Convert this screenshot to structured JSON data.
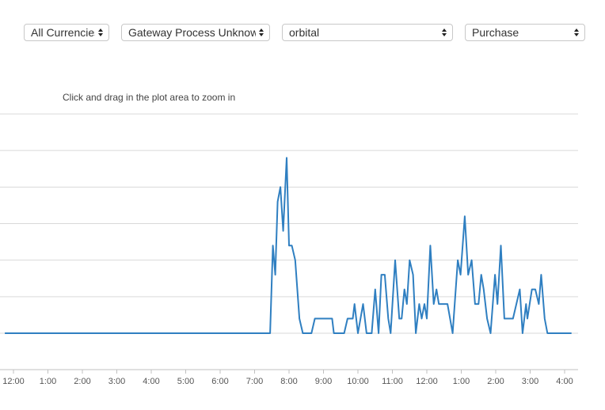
{
  "filters": {
    "currency": "All Currencies",
    "gateway": "Gateway Process Unknown",
    "merchant": "orbital",
    "transaction_type": "Purchase"
  },
  "zoom_hint": "Click and drag in the plot area to zoom in",
  "colors": {
    "series": "#2f7fc1",
    "grid": "#d9d9d9",
    "axis": "#c0c0c0"
  },
  "chart_data": {
    "type": "line",
    "x_tick_labels": [
      "12:00",
      "1:00",
      "2:00",
      "3:00",
      "4:00",
      "5:00",
      "6:00",
      "7:00",
      "8:00",
      "9:00",
      "10:00",
      "11:00",
      "12:00",
      "1:00",
      "2:00",
      "3:00",
      "4:00"
    ],
    "xlim_hours": [
      -0.25,
      16.3
    ],
    "ylim": [
      0,
      7
    ],
    "gridlines": 6,
    "grid": true,
    "series": [
      {
        "values": [
          [
            -0.25,
            0
          ],
          [
            7.45,
            0
          ],
          [
            7.53,
            2.4
          ],
          [
            7.6,
            1.6
          ],
          [
            7.67,
            3.6
          ],
          [
            7.75,
            4.0
          ],
          [
            7.83,
            2.8
          ],
          [
            7.93,
            4.8
          ],
          [
            8.0,
            2.4
          ],
          [
            8.08,
            2.4
          ],
          [
            8.18,
            2.0
          ],
          [
            8.3,
            0.4
          ],
          [
            8.4,
            0
          ],
          [
            8.65,
            0
          ],
          [
            8.75,
            0.4
          ],
          [
            9.25,
            0.4
          ],
          [
            9.3,
            0
          ],
          [
            9.6,
            0
          ],
          [
            9.7,
            0.4
          ],
          [
            9.85,
            0.4
          ],
          [
            9.9,
            0.8
          ],
          [
            10.0,
            0
          ],
          [
            10.15,
            0.8
          ],
          [
            10.25,
            0
          ],
          [
            10.4,
            0
          ],
          [
            10.5,
            1.2
          ],
          [
            10.6,
            0
          ],
          [
            10.68,
            1.6
          ],
          [
            10.78,
            1.6
          ],
          [
            10.88,
            0.4
          ],
          [
            10.95,
            0
          ],
          [
            11.08,
            2.0
          ],
          [
            11.2,
            0.4
          ],
          [
            11.27,
            0.4
          ],
          [
            11.35,
            1.2
          ],
          [
            11.42,
            0.8
          ],
          [
            11.5,
            2.0
          ],
          [
            11.6,
            1.6
          ],
          [
            11.68,
            0
          ],
          [
            11.78,
            0.8
          ],
          [
            11.85,
            0.4
          ],
          [
            11.93,
            0.8
          ],
          [
            12.0,
            0.4
          ],
          [
            12.1,
            2.4
          ],
          [
            12.2,
            0.8
          ],
          [
            12.28,
            1.2
          ],
          [
            12.35,
            0.8
          ],
          [
            12.6,
            0.8
          ],
          [
            12.75,
            0
          ],
          [
            12.9,
            2.0
          ],
          [
            12.98,
            1.6
          ],
          [
            13.1,
            3.2
          ],
          [
            13.2,
            1.6
          ],
          [
            13.3,
            2.0
          ],
          [
            13.4,
            0.8
          ],
          [
            13.5,
            0.8
          ],
          [
            13.58,
            1.6
          ],
          [
            13.65,
            1.2
          ],
          [
            13.75,
            0.4
          ],
          [
            13.85,
            0
          ],
          [
            13.98,
            1.6
          ],
          [
            14.05,
            0.8
          ],
          [
            14.15,
            2.4
          ],
          [
            14.25,
            0.4
          ],
          [
            14.5,
            0.4
          ],
          [
            14.7,
            1.2
          ],
          [
            14.78,
            0
          ],
          [
            14.88,
            0.8
          ],
          [
            14.92,
            0.4
          ],
          [
            15.05,
            1.2
          ],
          [
            15.15,
            1.2
          ],
          [
            15.25,
            0.8
          ],
          [
            15.32,
            1.6
          ],
          [
            15.42,
            0.4
          ],
          [
            15.5,
            0
          ],
          [
            16.2,
            0
          ]
        ]
      }
    ]
  }
}
